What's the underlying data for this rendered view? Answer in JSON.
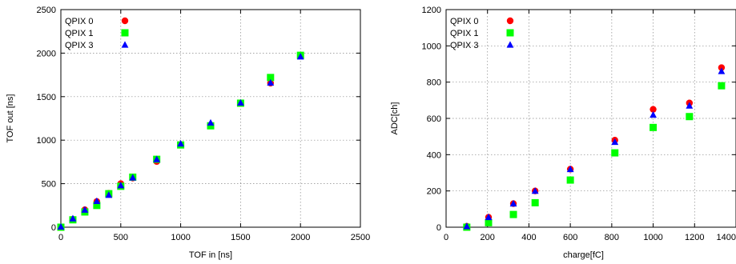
{
  "chart_data": [
    {
      "type": "scatter",
      "xlabel": "TOF in [ns]",
      "ylabel": "TOF out [ns]",
      "xlim": [
        0,
        2500
      ],
      "ylim": [
        0,
        2500
      ],
      "xticks": [
        0,
        500,
        1000,
        1500,
        2000,
        2500
      ],
      "yticks": [
        0,
        500,
        1000,
        1500,
        2000,
        2500
      ],
      "grid": true,
      "legend_position": "top-left",
      "series": [
        {
          "name": "QPIX 0",
          "marker": "circle",
          "color": "#ff0000",
          "x": [
            0,
            100,
            200,
            300,
            400,
            500,
            600,
            800,
            1000,
            1250,
            1500,
            1750,
            2000
          ],
          "y": [
            0,
            90,
            200,
            295,
            390,
            500,
            565,
            755,
            950,
            1170,
            1425,
            1655,
            1970
          ]
        },
        {
          "name": "QPIX 1",
          "marker": "square",
          "color": "#00ff00",
          "x": [
            0,
            100,
            200,
            300,
            400,
            500,
            600,
            800,
            1000,
            1250,
            1500,
            1750,
            2000
          ],
          "y": [
            0,
            85,
            175,
            250,
            385,
            470,
            575,
            780,
            945,
            1165,
            1425,
            1720,
            1975
          ]
        },
        {
          "name": "QPIX 3",
          "marker": "triangle",
          "color": "#0000ff",
          "x": [
            0,
            100,
            200,
            300,
            400,
            500,
            600,
            800,
            1000,
            1250,
            1500,
            1750,
            2000
          ],
          "y": [
            5,
            100,
            200,
            300,
            370,
            480,
            570,
            780,
            960,
            1200,
            1430,
            1660,
            1960
          ]
        }
      ]
    },
    {
      "type": "scatter",
      "xlabel": "charge[fC]",
      "ylabel": "ADC[ch]",
      "xlim": [
        0,
        1400
      ],
      "ylim": [
        0,
        1200
      ],
      "xticks": [
        0,
        200,
        400,
        600,
        800,
        1000,
        1200,
        1400
      ],
      "yticks": [
        0,
        200,
        400,
        600,
        800,
        1000,
        1200
      ],
      "grid": true,
      "legend_position": "top-left",
      "series": [
        {
          "name": "QPIX 0",
          "marker": "circle",
          "color": "#ff0000",
          "x": [
            100,
            205,
            325,
            430,
            600,
            815,
            1000,
            1175,
            1330
          ],
          "y": [
            5,
            55,
            130,
            200,
            320,
            480,
            650,
            685,
            880
          ]
        },
        {
          "name": "QPIX 1",
          "marker": "square",
          "color": "#00ff00",
          "x": [
            100,
            205,
            325,
            430,
            600,
            815,
            1000,
            1175,
            1330
          ],
          "y": [
            0,
            25,
            70,
            135,
            260,
            410,
            550,
            610,
            780
          ]
        },
        {
          "name": "QPIX 3",
          "marker": "triangle",
          "color": "#0000ff",
          "x": [
            100,
            205,
            325,
            430,
            600,
            815,
            1000,
            1175,
            1330
          ],
          "y": [
            5,
            55,
            130,
            200,
            320,
            470,
            620,
            670,
            860
          ]
        }
      ]
    }
  ]
}
